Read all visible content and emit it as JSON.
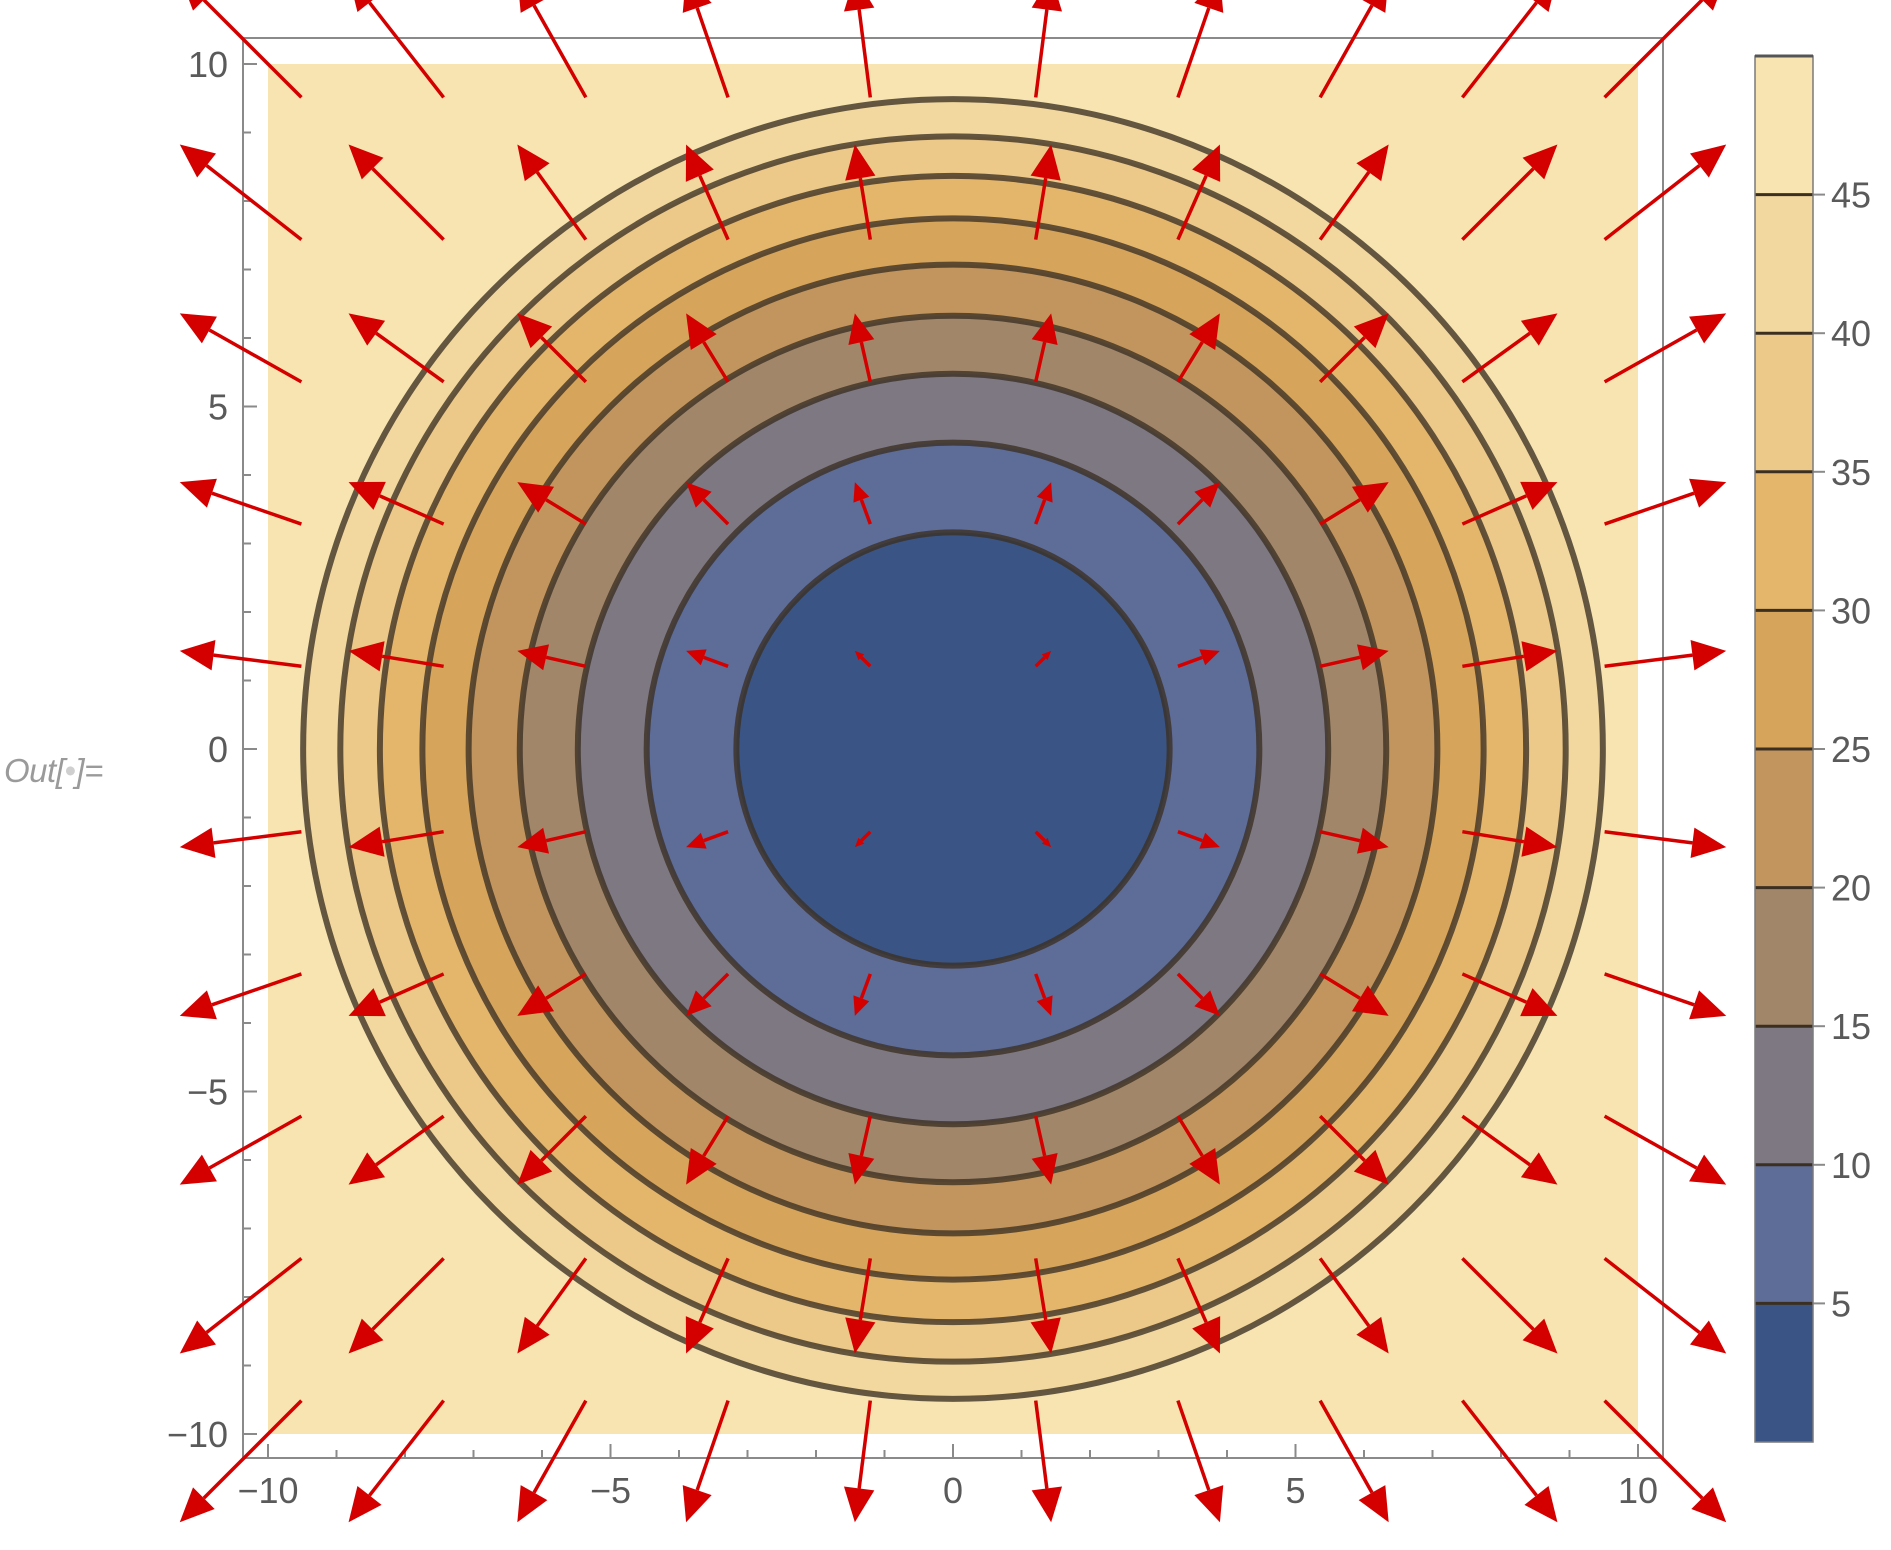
{
  "cell": {
    "out_prefix": "Out[",
    "out_marker": "•",
    "out_suffix": "]="
  },
  "chart_data": {
    "type": "contour+vector",
    "function": "x^2/2 + y^2/2",
    "xlim": [
      -10,
      10
    ],
    "ylim": [
      -10,
      10
    ],
    "x_ticks": [
      -10,
      -5,
      0,
      5,
      10
    ],
    "y_ticks": [
      -10,
      -5,
      0,
      5,
      10
    ],
    "x_tick_labels": [
      "−10",
      "−5",
      "0",
      "5",
      "10"
    ],
    "y_tick_labels": [
      "−10",
      "−5",
      "0",
      "5",
      "10"
    ],
    "contour_levels": [
      5,
      10,
      15,
      20,
      25,
      30,
      35,
      40,
      45
    ],
    "legend_min": 0,
    "legend_max": 50,
    "legend_ticks": [
      5,
      10,
      15,
      20,
      25,
      30,
      35,
      40,
      45
    ],
    "legend_tick_labels": [
      "5",
      "10",
      "15",
      "20",
      "25",
      "30",
      "35",
      "40",
      "45"
    ],
    "legend_placement": "right",
    "band_colors": [
      "#3a5585",
      "#5e6c98",
      "#7e7882",
      "#a1866a",
      "#c3955e",
      "#d6a45a",
      "#e3b66c",
      "#ecc889",
      "#f2d89e",
      "#f7e4b0"
    ],
    "vector_field": "gradient (x, y)",
    "vector_grid": [
      -10.4,
      -8.13,
      -5.86,
      -3.59,
      -1.32,
      1.32,
      3.59,
      5.86,
      8.13,
      10.4
    ],
    "vector_color": "#d40000",
    "contour_line_color": "#3b2f22",
    "frame_color": "#8a8a8a"
  }
}
